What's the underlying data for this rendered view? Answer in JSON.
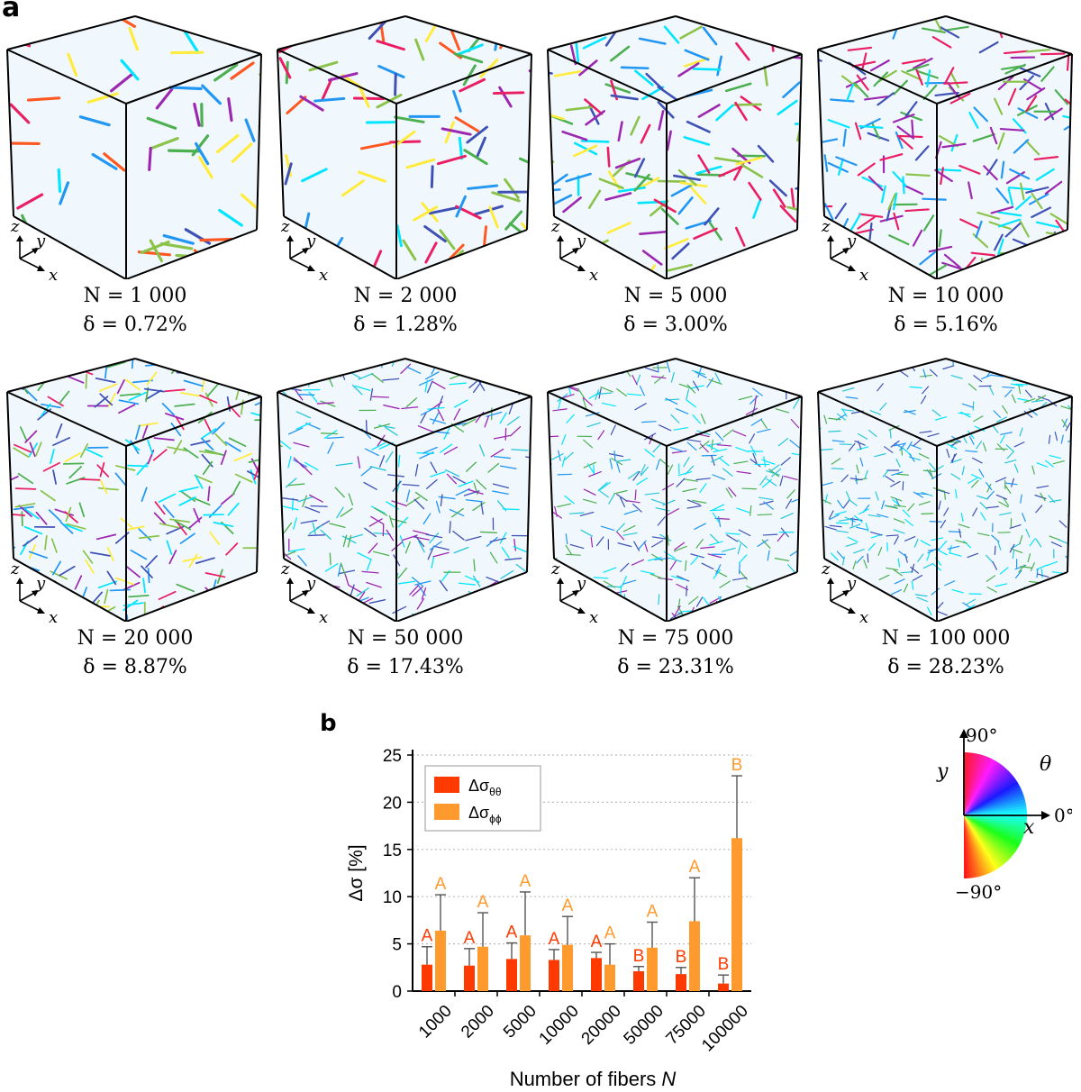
{
  "panel_a": {
    "label": "a",
    "axes": {
      "x": "x",
      "y": "y",
      "z": "z"
    },
    "cubes": [
      {
        "N": "N = 1 000",
        "delta": "δ = 0.72%",
        "density": 60,
        "palette": [
          "#e91e63",
          "#8bc34a",
          "#2196f3",
          "#9c27b0",
          "#00e5ff",
          "#ffeb3b",
          "#4caf50",
          "#3f51b5",
          "#ff5722"
        ]
      },
      {
        "N": "N = 2 000",
        "delta": "δ = 1.28%",
        "density": 90,
        "palette": [
          "#e91e63",
          "#8bc34a",
          "#2196f3",
          "#9c27b0",
          "#00e5ff",
          "#ffeb3b",
          "#4caf50",
          "#3f51b5",
          "#ff5722"
        ]
      },
      {
        "N": "N = 5 000",
        "delta": "δ = 3.00%",
        "density": 140,
        "palette": [
          "#00e5ff",
          "#2196f3",
          "#4caf50",
          "#3f51b5",
          "#8bc34a",
          "#9c27b0",
          "#e91e63",
          "#ffeb3b"
        ]
      },
      {
        "N": "N = 10 000",
        "delta": "δ = 5.16%",
        "density": 200,
        "palette": [
          "#00e5ff",
          "#2196f3",
          "#3f51b5",
          "#4caf50",
          "#8bc34a",
          "#9c27b0",
          "#e91e63"
        ]
      },
      {
        "N": "N = 20 000",
        "delta": "δ = 8.87%",
        "density": 260,
        "palette": [
          "#00e5ff",
          "#2196f3",
          "#3f51b5",
          "#4caf50",
          "#8bc34a",
          "#9c27b0",
          "#e91e63",
          "#ffeb3b"
        ]
      },
      {
        "N": "N = 50 000",
        "delta": "δ = 17.43%",
        "density": 320,
        "palette": [
          "#00e5ff",
          "#2196f3",
          "#3f51b5",
          "#4caf50",
          "#26c6da",
          "#9c27b0"
        ]
      },
      {
        "N": "N = 75 000",
        "delta": "δ = 23.31%",
        "density": 360,
        "palette": [
          "#00e5ff",
          "#2196f3",
          "#3f51b5",
          "#4caf50",
          "#26c6da",
          "#9c27b0"
        ]
      },
      {
        "N": "N = 100 000",
        "delta": "δ = 28.23%",
        "density": 400,
        "palette": [
          "#00e5ff",
          "#26c6da",
          "#2196f3",
          "#3f51b5",
          "#4caf50"
        ]
      }
    ]
  },
  "chart_data": {
    "label": "b",
    "type": "bar",
    "xlabel": "Number of fibers N",
    "ylabel": "Δσ [%]",
    "ylim": [
      0,
      25
    ],
    "yticks": [
      "0",
      "5",
      "10",
      "15",
      "20",
      "25"
    ],
    "ytick_values": [
      0,
      5,
      10,
      15,
      20,
      25
    ],
    "grid": true,
    "legend_position": "top-left",
    "categories": [
      "1000",
      "2000",
      "5000",
      "10000",
      "20000",
      "50000",
      "75000",
      "100000"
    ],
    "series": [
      {
        "name": "Δσθθ",
        "legend_base": "Δσ",
        "legend_sub": "θθ",
        "color": "#ff3a00",
        "values": [
          2.8,
          2.7,
          3.4,
          3.3,
          3.5,
          2.1,
          1.8,
          0.8
        ],
        "error": [
          1.9,
          1.8,
          1.7,
          1.1,
          0.6,
          0.5,
          0.7,
          0.9
        ],
        "letters": [
          "A",
          "A",
          "A",
          "A",
          "A",
          "B",
          "B",
          "B"
        ]
      },
      {
        "name": "Δσϕϕ",
        "legend_base": "Δσ",
        "legend_sub": "ϕϕ",
        "color": "#ff9a2e",
        "values": [
          6.4,
          4.7,
          5.9,
          4.9,
          2.8,
          4.6,
          7.4,
          16.2
        ],
        "error": [
          3.8,
          3.6,
          4.6,
          3.0,
          2.2,
          2.7,
          4.6,
          6.6
        ],
        "letters": [
          "A",
          "A",
          "A",
          "A",
          "A",
          "A",
          "A",
          "B"
        ]
      }
    ]
  },
  "colorwheel": {
    "top": "90°",
    "bottom": "−90°",
    "right": "0°",
    "theta": "θ",
    "x": "x",
    "y": "y"
  }
}
